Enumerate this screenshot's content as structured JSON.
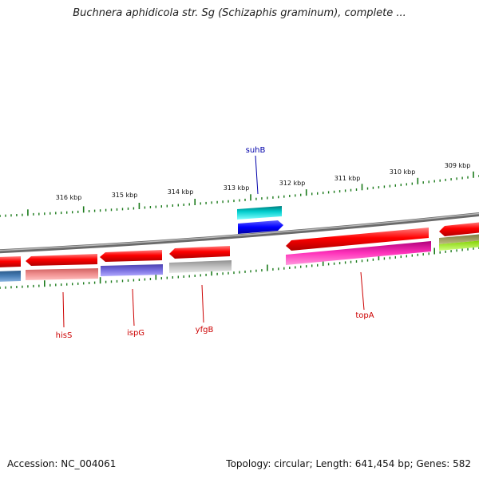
{
  "title": "Buchnera aphidicola str. Sg (Schizaphis graminum), complete ...",
  "footer": {
    "accession": "Accession: NC_004061",
    "summary": "Topology: circular; Length: 641,454 bp; Genes: 582"
  },
  "colors": {
    "backbone": "#808080",
    "tick": "#1a7a1a",
    "forward_gene": "#ff0000",
    "gene_label_red": "#cc0000",
    "gene_label_blue": "#0000aa"
  },
  "ruler_labels": [
    "316 kbp",
    "315 kbp",
    "314 kbp",
    "313 kbp",
    "312 kbp",
    "311 kbp",
    "310 kbp",
    "309 kbp"
  ],
  "gene_labels": [
    {
      "name": "suhB",
      "color": "#0000aa"
    },
    {
      "name": "hisS",
      "color": "#cc0000"
    },
    {
      "name": "ispG",
      "color": "#cc0000"
    },
    {
      "name": "yfgB",
      "color": "#cc0000"
    },
    {
      "name": "topA",
      "color": "#cc0000"
    }
  ]
}
